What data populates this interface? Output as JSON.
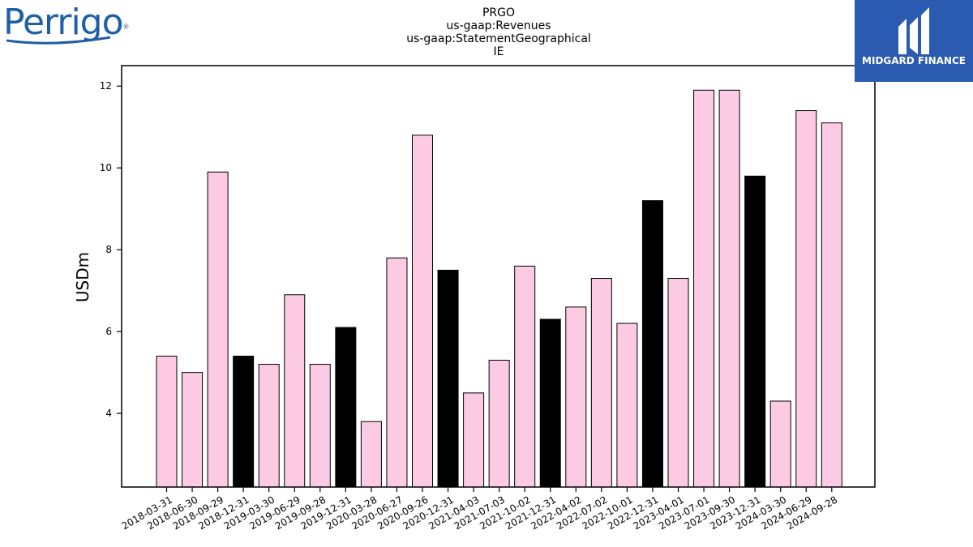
{
  "logos": {
    "left_text": "Perrigo",
    "left_mark": "®",
    "right_text": "MIDGARD FINANCE"
  },
  "colors": {
    "normal_bar": "#fccae3",
    "highlight_bar": "#000000",
    "edge": "#000000"
  },
  "chart_data": {
    "type": "bar",
    "title_lines": [
      "PRGO",
      "us-gaap:Revenues",
      "us-gaap:StatementGeographical",
      "IE"
    ],
    "xlabel": "",
    "ylabel": "USDm",
    "ylim": [
      2.2,
      12.5
    ],
    "yticks": [
      4,
      6,
      8,
      10,
      12
    ],
    "grid": false,
    "categories": [
      "2018-03-31",
      "2018-06-30",
      "2018-09-29",
      "2018-12-31",
      "2019-03-30",
      "2019-06-29",
      "2019-09-28",
      "2019-12-31",
      "2020-03-28",
      "2020-06-27",
      "2020-09-26",
      "2020-12-31",
      "2021-04-03",
      "2021-07-03",
      "2021-10-02",
      "2021-12-31",
      "2022-04-02",
      "2022-07-02",
      "2022-10-01",
      "2022-12-31",
      "2023-04-01",
      "2023-07-01",
      "2023-09-30",
      "2023-12-31",
      "2024-03-30",
      "2024-06-29",
      "2024-09-28"
    ],
    "values": [
      5.4,
      5.0,
      9.9,
      5.4,
      5.2,
      6.9,
      5.2,
      6.1,
      3.8,
      7.8,
      10.8,
      7.5,
      4.5,
      5.3,
      7.6,
      6.3,
      6.6,
      7.3,
      6.2,
      9.2,
      7.3,
      11.9,
      11.9,
      9.8,
      4.3,
      11.4,
      11.1
    ],
    "highlighted": [
      false,
      false,
      false,
      true,
      false,
      false,
      false,
      true,
      false,
      false,
      false,
      true,
      false,
      false,
      false,
      true,
      false,
      false,
      false,
      true,
      false,
      false,
      false,
      true,
      false,
      false,
      false
    ]
  }
}
